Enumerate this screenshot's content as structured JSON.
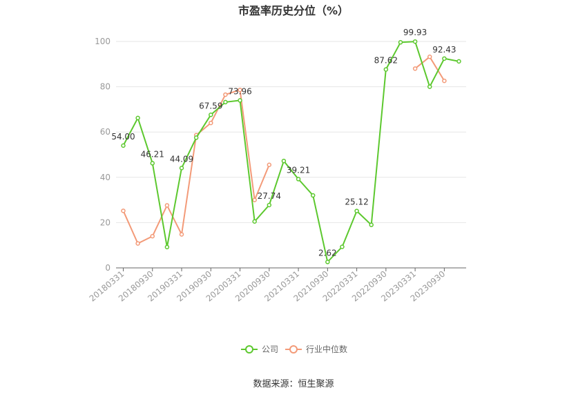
{
  "chart_data": {
    "type": "line",
    "title": "市盈率历史分位（%）",
    "ylim": [
      0,
      100
    ],
    "yticks": [
      0,
      20,
      40,
      60,
      80,
      100
    ],
    "x": [
      "20180331",
      "20180630",
      "20180930",
      "20181231",
      "20190331",
      "20190630",
      "20190930",
      "20191231",
      "20200331",
      "20200630",
      "20200930",
      "20201231",
      "20210331",
      "20210630",
      "20210930",
      "20211231",
      "20220331",
      "20220630",
      "20220930",
      "20221231",
      "20230331",
      "20230630",
      "20230930",
      "20231231"
    ],
    "xtick_labels": [
      "20180331",
      "20180930",
      "20190331",
      "20190930",
      "20200331",
      "20200930",
      "20210331",
      "20210930",
      "20220331",
      "20220930",
      "20230331",
      "20230930"
    ],
    "grid": true,
    "legend_position": "bottom",
    "series": [
      {
        "name": "公司",
        "color": "#5cc82e",
        "values": [
          54.0,
          66.2,
          46.21,
          9.2,
          44.09,
          57.5,
          67.59,
          73.2,
          73.96,
          20.5,
          27.74,
          47.2,
          39.21,
          32.0,
          2.62,
          9.3,
          25.12,
          19.0,
          87.62,
          99.6,
          99.93,
          80.0,
          92.43,
          91.2
        ],
        "labels": [
          "54.00",
          null,
          "46.21",
          null,
          "44.09",
          null,
          "67.59",
          null,
          "73.96",
          null,
          "27.74",
          null,
          "39.21",
          null,
          "2.62",
          null,
          "25.12",
          null,
          "87.62",
          null,
          "99.93",
          null,
          "92.43",
          null
        ]
      },
      {
        "name": "行业中位数",
        "color": "#f39a78",
        "values": [
          25.2,
          10.8,
          14.0,
          27.6,
          14.8,
          58.6,
          64.0,
          76.5,
          78.6,
          30.0,
          45.5,
          null,
          null,
          null,
          null,
          null,
          null,
          null,
          null,
          null,
          88.0,
          93.2,
          82.6,
          null
        ]
      }
    ]
  },
  "source": "数据来源：恒生聚源"
}
